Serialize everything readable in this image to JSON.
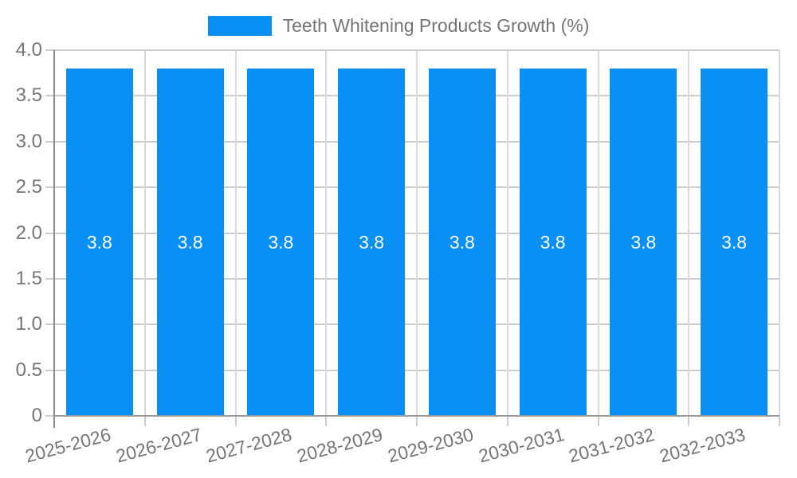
{
  "chart_data": {
    "type": "bar",
    "title": "Teeth Whitening Products Growth (%)",
    "categories": [
      "2025-2026",
      "2026-2027",
      "2027-2028",
      "2028-2029",
      "2029-2030",
      "2030-2031",
      "2031-2032",
      "2032-2033"
    ],
    "values": [
      3.8,
      3.8,
      3.8,
      3.8,
      3.8,
      3.8,
      3.8,
      3.8
    ],
    "bar_labels": [
      "3.8",
      "3.8",
      "3.8",
      "3.8",
      "3.8",
      "3.8",
      "3.8",
      "3.8"
    ],
    "xlabel": "",
    "ylabel": "",
    "ylim": [
      0,
      4.0
    ],
    "yticks": [
      0,
      0.5,
      1.0,
      1.5,
      2.0,
      2.5,
      3.0,
      3.5,
      4.0
    ],
    "ytick_labels": [
      "0",
      "0.5",
      "1.0",
      "1.5",
      "2.0",
      "2.5",
      "3.0",
      "3.5",
      "4.0"
    ],
    "grid": true,
    "legend_position": "top-center",
    "colors": {
      "bar": "#0a8ff5",
      "grid": "#cccccc",
      "grid_vertical": "#d9d9d9",
      "axis": "#999999",
      "text": "#757575",
      "bar_label": "#ffffff",
      "background": "#ffffff"
    }
  }
}
